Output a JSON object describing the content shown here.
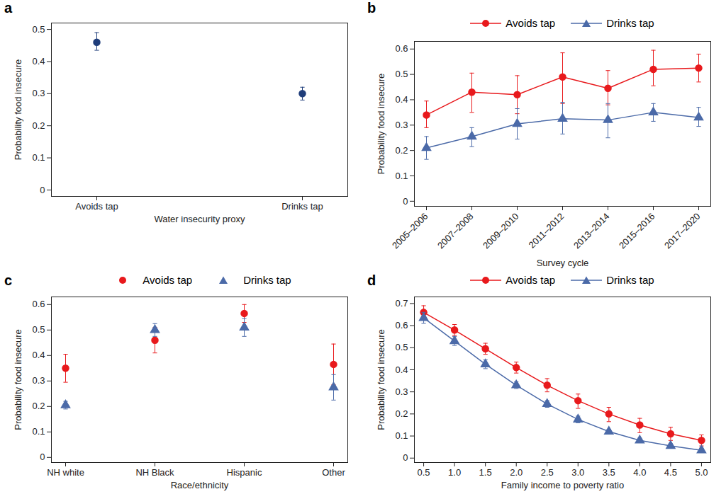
{
  "chart_data": [
    {
      "type": "scatter",
      "title": "a",
      "categories": [
        "Avoids tap",
        "Drinks tap"
      ],
      "values": [
        0.46,
        0.3
      ],
      "lower": [
        0.435,
        0.28
      ],
      "upper": [
        0.49,
        0.32
      ],
      "color": "#1f3d7a",
      "marker": "circle",
      "x_label": "Water insecurity proxy",
      "y_label": "Probability food insecure",
      "ylim": [
        -0.02,
        0.52
      ],
      "yticks": [
        0,
        0.1,
        0.2,
        0.3,
        0.4,
        0.5
      ]
    },
    {
      "type": "line",
      "title": "b",
      "categories": [
        "2005–2006",
        "2007–2008",
        "2009–2010",
        "2011–2012",
        "2013–2014",
        "2015–2016",
        "2017–2020"
      ],
      "series": [
        {
          "name": "Avoids tap",
          "color": "#e8191c",
          "marker": "circle",
          "values": [
            0.34,
            0.43,
            0.42,
            0.49,
            0.445,
            0.52,
            0.525
          ],
          "lower": [
            0.29,
            0.35,
            0.345,
            0.385,
            0.38,
            0.455,
            0.47
          ],
          "upper": [
            0.395,
            0.505,
            0.495,
            0.585,
            0.515,
            0.595,
            0.58
          ]
        },
        {
          "name": "Drinks tap",
          "color": "#4b6aa8",
          "marker": "triangle",
          "values": [
            0.21,
            0.255,
            0.305,
            0.325,
            0.32,
            0.35,
            0.33
          ],
          "lower": [
            0.165,
            0.215,
            0.245,
            0.265,
            0.25,
            0.315,
            0.295
          ],
          "upper": [
            0.255,
            0.29,
            0.365,
            0.39,
            0.385,
            0.385,
            0.37
          ]
        }
      ],
      "x_label": "Survey cycle",
      "y_label": "Probability food insecure",
      "ylim": [
        -0.02,
        0.63
      ],
      "yticks": [
        0,
        0.1,
        0.2,
        0.3,
        0.4,
        0.5,
        0.6
      ],
      "legend": "top"
    },
    {
      "type": "scatter",
      "title": "c",
      "categories": [
        "NH white",
        "NH Black",
        "Hispanic",
        "Other"
      ],
      "series": [
        {
          "name": "Avoids tap",
          "color": "#e8191c",
          "marker": "circle",
          "values": [
            0.35,
            0.46,
            0.565,
            0.365
          ],
          "lower": [
            0.295,
            0.41,
            0.53,
            0.285
          ],
          "upper": [
            0.405,
            0.51,
            0.6,
            0.445
          ]
        },
        {
          "name": "Drinks tap",
          "color": "#4b6aa8",
          "marker": "triangle",
          "values": [
            0.205,
            0.5,
            0.51,
            0.275
          ],
          "lower": [
            0.19,
            0.475,
            0.475,
            0.225
          ],
          "upper": [
            0.22,
            0.525,
            0.545,
            0.325
          ]
        }
      ],
      "x_label": "Race/ethnicity",
      "y_label": "Probability food insecure",
      "ylim": [
        -0.02,
        0.63
      ],
      "yticks": [
        0,
        0.1,
        0.2,
        0.3,
        0.4,
        0.5,
        0.6
      ],
      "legend": "top"
    },
    {
      "type": "line",
      "title": "d",
      "x": [
        0.5,
        1.0,
        1.5,
        2.0,
        2.5,
        3.0,
        3.5,
        4.0,
        4.5,
        5.0
      ],
      "series": [
        {
          "name": "Avoids tap",
          "color": "#e8191c",
          "marker": "circle",
          "values": [
            0.66,
            0.58,
            0.495,
            0.41,
            0.33,
            0.26,
            0.2,
            0.15,
            0.11,
            0.08
          ],
          "lower": [
            0.63,
            0.555,
            0.47,
            0.385,
            0.3,
            0.225,
            0.165,
            0.115,
            0.08,
            0.055
          ],
          "upper": [
            0.69,
            0.605,
            0.52,
            0.435,
            0.36,
            0.29,
            0.23,
            0.18,
            0.14,
            0.105
          ]
        },
        {
          "name": "Drinks tap",
          "color": "#4b6aa8",
          "marker": "triangle",
          "values": [
            0.635,
            0.53,
            0.425,
            0.33,
            0.245,
            0.175,
            0.12,
            0.08,
            0.055,
            0.035
          ],
          "lower": [
            0.61,
            0.51,
            0.405,
            0.315,
            0.23,
            0.16,
            0.11,
            0.07,
            0.045,
            0.025
          ],
          "upper": [
            0.66,
            0.55,
            0.445,
            0.345,
            0.26,
            0.19,
            0.13,
            0.09,
            0.065,
            0.045
          ]
        }
      ],
      "x_label": "Family income to poverty ratio",
      "y_label": "Probability food insecure",
      "xlim": [
        0.35,
        5.15
      ],
      "xticks": [
        0.5,
        {
          "value": 1,
          "label": "1.0"
        },
        1.5,
        {
          "value": 2,
          "label": "2.0"
        },
        2.5,
        {
          "value": 3,
          "label": "3.0"
        },
        3.5,
        {
          "value": 4,
          "label": "4.0"
        },
        4.5,
        {
          "value": 5,
          "label": "5.0"
        }
      ],
      "ylim": [
        -0.02,
        0.73
      ],
      "yticks": [
        0,
        0.1,
        0.2,
        0.3,
        0.4,
        0.5,
        0.6,
        0.7
      ],
      "legend": "top"
    }
  ]
}
